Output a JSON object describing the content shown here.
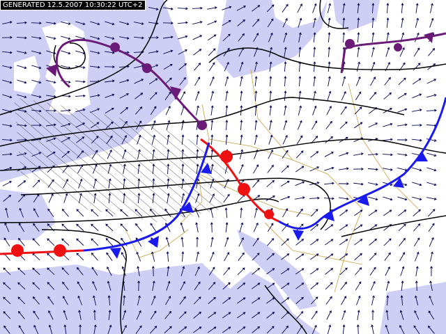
{
  "header": {
    "generated": "GENERATED 12.5.2007 10:30:22 UTC+2"
  }
}
